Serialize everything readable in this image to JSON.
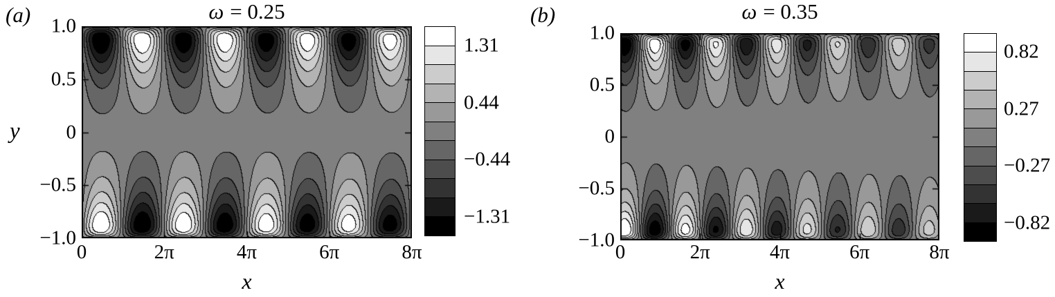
{
  "figure": {
    "background": "#ffffff",
    "panels": [
      {
        "id": "a",
        "tag": "(a)",
        "title_symbol": "ω",
        "title_rest": "= 0.25",
        "x_label": "x",
        "y_label": "y",
        "x_tick_labels": [
          "0",
          "2π",
          "4π",
          "6π",
          "8π"
        ],
        "y_tick_labels": [
          "1.0",
          "0.5",
          "0",
          "−0.5",
          "−1.0"
        ],
        "colorbar_labels": [
          "1.31",
          "0.44",
          "−0.44",
          "−1.31"
        ]
      },
      {
        "id": "b",
        "tag": "(b)",
        "title_symbol": "ω",
        "title_rest": "= 0.35",
        "x_label": "x",
        "y_label": "",
        "x_tick_labels": [
          "0",
          "2π",
          "4π",
          "6π",
          "8π"
        ],
        "y_tick_labels": [
          "1.0",
          "0.5",
          "0",
          "−0.5",
          "−1.0"
        ],
        "colorbar_labels": [
          "0.82",
          "0.27",
          "−0.27",
          "−0.82"
        ]
      }
    ]
  },
  "chart_data": [
    {
      "panel": "a",
      "type": "heatmap",
      "subtype": "filled-contour",
      "title": "ω = 0.25",
      "xlabel": "x",
      "ylabel": "y",
      "xlim": [
        0,
        25.1327
      ],
      "ylim": [
        -1,
        1
      ],
      "x_tick_labels": [
        "0",
        "2π",
        "4π",
        "6π",
        "8π"
      ],
      "y_ticks": [
        -1.0,
        -0.5,
        0,
        0.5,
        1.0
      ],
      "n_bands": 11,
      "vmax": 1.6,
      "contour_step": 0.291,
      "colorbar_tick_values": [
        1.31,
        0.44,
        -0.44,
        -1.31
      ],
      "colorbar_tick_band_boundaries": [
        1,
        4,
        7,
        10
      ],
      "colormap": "grayscale: black = minimum, white = maximum",
      "grid": false,
      "legend": "colorbar right of axes",
      "field": {
        "description": "antisymmetric oscillatory wall-layer wave f(x,-y) = -f(x,y); sign-alternating lobes along both walls (negative/dark lobe near x=π/2 at top wall, positive/white lobe near x=π/2 at bottom wall), wavelength 2π in x, lobe cores at |y|≈0.85, thin zero-crossing sheet at walls, uniform mid-gray core for |y|≲0.12",
        "k": 1.0,
        "phase": 0.15,
        "lean": 0.25,
        "env_rise": 0.085,
        "env_decay": 0.3,
        "x_decay": 0.004,
        "amplitude": 1.6
      }
    },
    {
      "panel": "b",
      "type": "heatmap",
      "subtype": "filled-contour",
      "title": "ω = 0.35",
      "xlabel": "x",
      "ylabel": "",
      "xlim": [
        0,
        25.1327
      ],
      "ylim": [
        -1,
        1
      ],
      "x_tick_labels": [
        "0",
        "2π",
        "4π",
        "6π",
        "8π"
      ],
      "y_ticks": [
        -1.0,
        -0.5,
        0,
        0.5,
        1.0
      ],
      "n_bands": 11,
      "vmax": 1.0,
      "contour_step": 0.182,
      "colorbar_tick_values": [
        0.82,
        0.27,
        -0.27,
        -0.82
      ],
      "colorbar_tick_band_boundaries": [
        1,
        4,
        7,
        10
      ],
      "colormap": "grayscale: black = minimum, white = maximum",
      "grid": false,
      "legend": "colorbar right of axes",
      "field": {
        "description": "same antisymmetric wall-layer wave but shorter wavelength (≈1.5π) and amplitude decaying with x (≈ half by x=8π); dark lobe at top wall near x≈0, white lobe at bottom wall near x≈0; lobe cores at |y|≈0.88; uniform mid-gray core around y=0",
        "k": 1.31,
        "phase": 1.171,
        "lean": 0.25,
        "env_rise": 0.065,
        "env_decay": 0.26,
        "x_decay": 0.027,
        "amplitude": 1.0
      }
    }
  ]
}
